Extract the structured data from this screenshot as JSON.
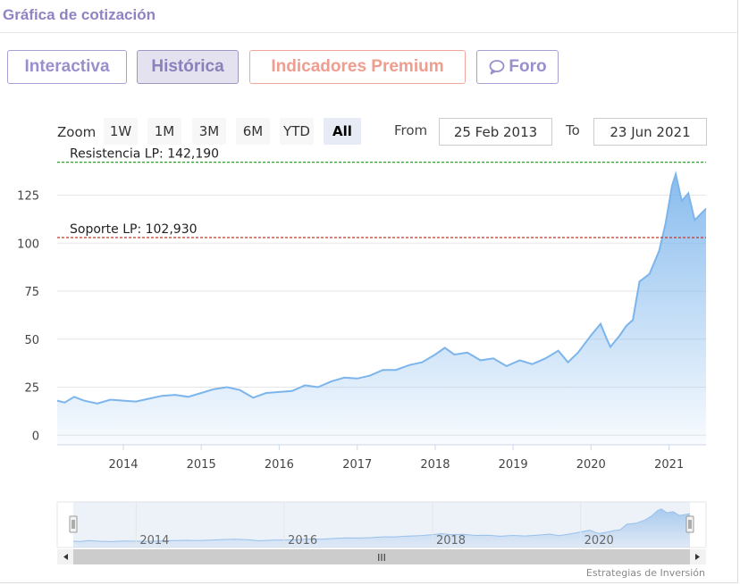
{
  "widget": {
    "title": "Gráfica de cotización"
  },
  "tabs": [
    {
      "label": "Interactiva"
    },
    {
      "label": "Histórica"
    },
    {
      "label": "Indicadores Premium"
    },
    {
      "label": "Foro",
      "icon": "chat-bubble-icon"
    }
  ],
  "range_selector": {
    "zoom_label": "Zoom",
    "buttons": [
      "1W",
      "1M",
      "3M",
      "6M",
      "YTD",
      "All"
    ],
    "selected": "All",
    "from_label": "From",
    "from_value": "25 Feb 2013",
    "to_label": "To",
    "to_value": "23 Jun 2021"
  },
  "navigator": {
    "years": [
      "2014",
      "2016",
      "2018",
      "2020"
    ],
    "scroll_grip": "III"
  },
  "credits": "Estrategias de Inversión",
  "colors": {
    "series_line": "#7cb5ec",
    "resistance_line": "#2e9e2e",
    "support_line": "#c0392b",
    "grid": "#e6e6e6",
    "navigator_mask": "#ccd6eb"
  },
  "chart_data": {
    "type": "area",
    "x_axis": {
      "type": "datetime",
      "range": [
        "2013-02-25",
        "2021-06-23"
      ],
      "tick_labels": [
        "2014",
        "2015",
        "2016",
        "2017",
        "2018",
        "2019",
        "2020",
        "2021"
      ]
    },
    "y_axis": {
      "range": [
        -5,
        142
      ],
      "tick_values": [
        0,
        25,
        50,
        75,
        100,
        125
      ]
    },
    "grid": true,
    "plot_lines": [
      {
        "label": "Resistencia LP: 142,190",
        "value": 142.19,
        "style": "dashed",
        "color": "#2e9e2e"
      },
      {
        "label": "Soporte LP: 102,930",
        "value": 102.93,
        "style": "dashed",
        "color": "#c0392b"
      }
    ],
    "series": [
      {
        "points": [
          [
            "2013-02-25",
            18
          ],
          [
            "2013-04-01",
            17
          ],
          [
            "2013-05-15",
            20
          ],
          [
            "2013-07-01",
            18
          ],
          [
            "2013-09-01",
            16.5
          ],
          [
            "2013-11-01",
            18.5
          ],
          [
            "2014-01-01",
            18
          ],
          [
            "2014-03-01",
            17.5
          ],
          [
            "2014-05-01",
            19
          ],
          [
            "2014-07-01",
            20.5
          ],
          [
            "2014-09-01",
            21
          ],
          [
            "2014-11-01",
            20
          ],
          [
            "2015-01-01",
            22
          ],
          [
            "2015-03-01",
            24
          ],
          [
            "2015-05-01",
            25
          ],
          [
            "2015-07-01",
            23.5
          ],
          [
            "2015-09-01",
            19.5
          ],
          [
            "2015-11-01",
            22
          ],
          [
            "2016-01-01",
            22.5
          ],
          [
            "2016-03-01",
            23
          ],
          [
            "2016-05-01",
            26
          ],
          [
            "2016-07-01",
            25
          ],
          [
            "2016-09-01",
            28
          ],
          [
            "2016-11-01",
            30
          ],
          [
            "2017-01-01",
            29.5
          ],
          [
            "2017-03-01",
            31
          ],
          [
            "2017-05-01",
            34
          ],
          [
            "2017-07-01",
            34
          ],
          [
            "2017-09-01",
            36.5
          ],
          [
            "2017-11-01",
            38
          ],
          [
            "2018-01-01",
            42
          ],
          [
            "2018-02-15",
            45.5
          ],
          [
            "2018-04-01",
            42
          ],
          [
            "2018-06-01",
            43
          ],
          [
            "2018-08-01",
            39
          ],
          [
            "2018-10-01",
            40
          ],
          [
            "2018-12-01",
            36
          ],
          [
            "2019-02-01",
            39
          ],
          [
            "2019-04-01",
            37
          ],
          [
            "2019-06-01",
            40
          ],
          [
            "2019-08-01",
            44
          ],
          [
            "2019-09-15",
            38
          ],
          [
            "2019-11-01",
            43
          ],
          [
            "2020-01-01",
            52
          ],
          [
            "2020-02-15",
            58
          ],
          [
            "2020-03-15",
            50
          ],
          [
            "2020-04-01",
            46
          ],
          [
            "2020-05-15",
            52
          ],
          [
            "2020-06-15",
            57
          ],
          [
            "2020-07-15",
            60
          ],
          [
            "2020-08-15",
            80
          ],
          [
            "2020-10-01",
            84
          ],
          [
            "2020-11-15",
            96
          ],
          [
            "2020-12-15",
            110
          ],
          [
            "2021-01-15",
            130
          ],
          [
            "2021-02-01",
            136
          ],
          [
            "2021-03-01",
            122
          ],
          [
            "2021-04-01",
            126
          ],
          [
            "2021-05-01",
            112
          ],
          [
            "2021-06-23",
            118
          ]
        ]
      }
    ]
  }
}
